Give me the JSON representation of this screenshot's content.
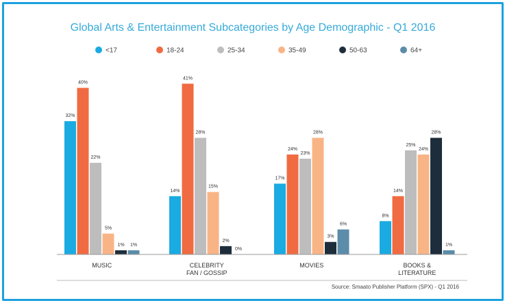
{
  "chart_data": {
    "type": "bar",
    "title": "Global Arts & Entertainment Subcategories by Age Demographic - Q1 2016",
    "xlabel": "",
    "ylabel": "",
    "ylim": [
      0,
      45
    ],
    "grid": false,
    "legend_position": "top",
    "categories": [
      {
        "line1": "MUSIC",
        "line2": ""
      },
      {
        "line1": "CELEBRITY",
        "line2": "FAN / GOSSIP"
      },
      {
        "line1": "MOVIES",
        "line2": ""
      },
      {
        "line1": "BOOKS &",
        "line2": "LITERATURE"
      }
    ],
    "series": [
      {
        "name": "<17",
        "color": "#1aabe2",
        "values": [
          32,
          14,
          17,
          8
        ],
        "labels": [
          "32%",
          "14%",
          "17%",
          "8%"
        ]
      },
      {
        "name": "18-24",
        "color": "#f06b42",
        "values": [
          40,
          41,
          24,
          14
        ],
        "labels": [
          "40%",
          "41%",
          "24%",
          "14%"
        ]
      },
      {
        "name": "25-34",
        "color": "#bdbdbd",
        "values": [
          22,
          28,
          23,
          25
        ],
        "labels": [
          "22%",
          "28%",
          "23%",
          "25%"
        ]
      },
      {
        "name": "35-49",
        "color": "#f9b486",
        "values": [
          5,
          15,
          28,
          24
        ],
        "labels": [
          "5%",
          "15%",
          "28%",
          "24%"
        ]
      },
      {
        "name": "50-63",
        "color": "#1e2d3b",
        "values": [
          1,
          2,
          3,
          28
        ],
        "labels": [
          "1%",
          "2%",
          "3%",
          "28%"
        ]
      },
      {
        "name": "64+",
        "color": "#5b8ca9",
        "values": [
          1,
          0,
          6,
          1
        ],
        "labels": [
          "1%",
          "0%",
          "6%",
          "1%"
        ]
      }
    ],
    "source": "Source: Smaato Publisher Platform (SPX) - Q1 2016"
  }
}
